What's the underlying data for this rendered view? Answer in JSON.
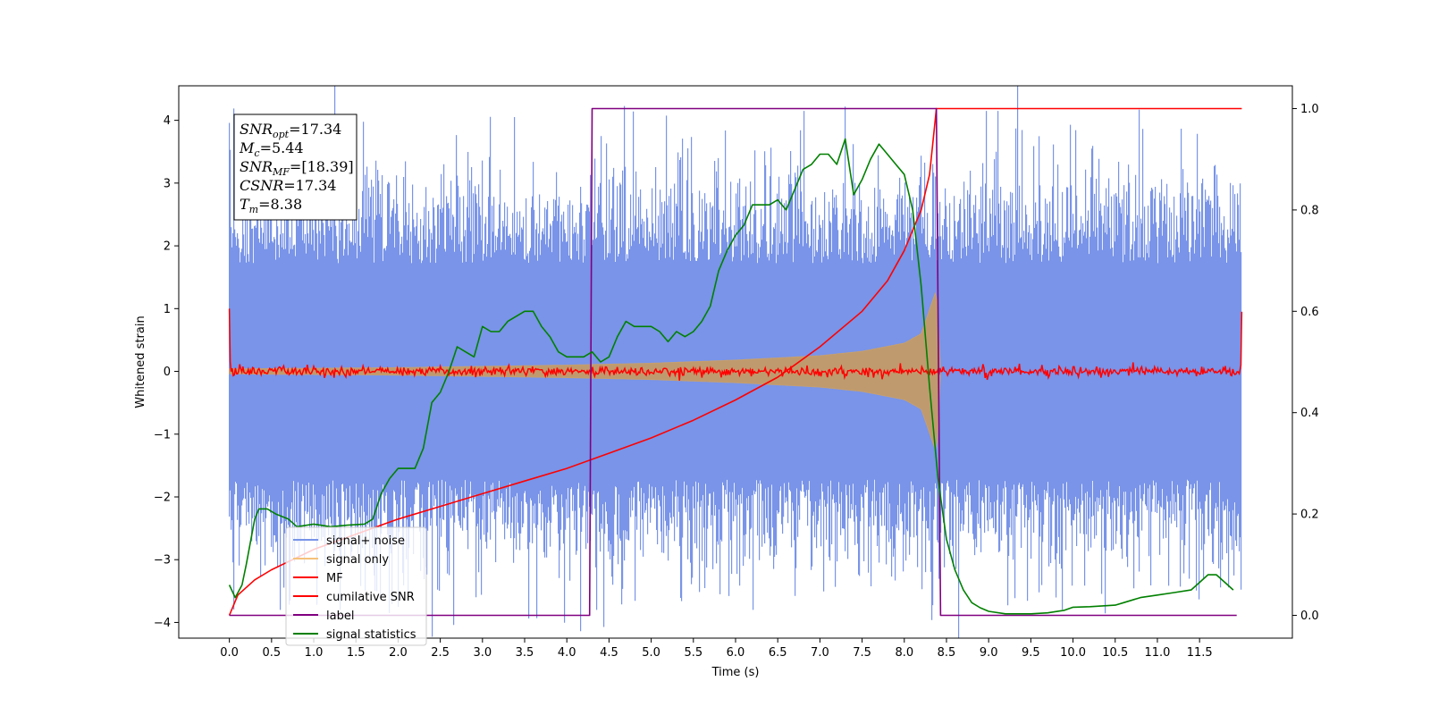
{
  "chart_data": {
    "type": "line",
    "xlabel": "Time (s)",
    "ylabel": "Whitened strain",
    "xlim": [
      -0.6,
      12.6
    ],
    "ylim": [
      -4.25,
      4.55
    ],
    "y2lim": [
      -0.045,
      1.045
    ],
    "grid": false,
    "legend_position": "bottom-left",
    "x_ticks": [
      "0.0",
      "0.5",
      "1.0",
      "1.5",
      "2.0",
      "2.5",
      "3.0",
      "3.5",
      "4.0",
      "4.5",
      "5.0",
      "5.5",
      "6.0",
      "6.5",
      "7.0",
      "7.5",
      "8.0",
      "8.5",
      "9.0",
      "9.5",
      "10.0",
      "10.5",
      "11.0",
      "11.5"
    ],
    "y_ticks": [
      "4",
      "3",
      "2",
      "1",
      "0",
      "−1",
      "−2",
      "−3",
      "−4"
    ],
    "y2_ticks": [
      "1.0",
      "0.8",
      "0.6",
      "0.4",
      "0.2",
      "0.0"
    ],
    "annotation": {
      "lines": [
        {
          "base": "SNR",
          "sub": "opt",
          "rest": "=17.34"
        },
        {
          "base": "M",
          "sub": "c",
          "rest": "=5.44"
        },
        {
          "base": "SNR",
          "sub": "MF",
          "rest": "=[18.39]"
        },
        {
          "base": "CSNR",
          "sub": "",
          "rest": "=17.34"
        },
        {
          "base": "T",
          "sub": "m",
          "rest": "=8.38"
        }
      ]
    },
    "series": [
      {
        "name": "signal+ noise",
        "color": "#7994e8",
        "axis": "left",
        "kind": "noise-band",
        "x_range": [
          0.0,
          12.0
        ],
        "envelope": {
          "typical": 2.3,
          "peak_max": 4.15,
          "peak_min": -3.8
        }
      },
      {
        "name": "signal only",
        "color": "#f5c27a",
        "axis": "left",
        "kind": "chirp-band",
        "x_range": [
          0.0,
          8.43
        ],
        "amplitude": {
          "x": [
            0.0,
            2.0,
            4.0,
            5.0,
            6.0,
            7.0,
            7.5,
            8.0,
            8.2,
            8.38,
            8.42,
            8.43
          ],
          "y": [
            0.04,
            0.06,
            0.1,
            0.13,
            0.18,
            0.25,
            0.32,
            0.45,
            0.6,
            1.3,
            0.4,
            0.0
          ]
        }
      },
      {
        "name": "MF",
        "color": "#ff0000",
        "axis": "left",
        "kind": "noise-line",
        "x_range": [
          0.0,
          12.0
        ],
        "end_values": {
          "start": 1.0,
          "end": 0.95
        },
        "noise_sd": 0.035
      },
      {
        "name": "cumilative SNR",
        "color": "#ff0000",
        "axis": "right",
        "x": [
          0.0,
          0.1,
          0.3,
          0.5,
          1.0,
          1.5,
          2.0,
          2.5,
          3.0,
          3.5,
          4.0,
          4.5,
          5.0,
          5.5,
          6.0,
          6.5,
          7.0,
          7.5,
          7.8,
          8.0,
          8.2,
          8.3,
          8.38,
          8.4,
          8.5,
          9.0,
          10.0,
          11.0,
          12.0
        ],
        "y": [
          0.0,
          0.04,
          0.07,
          0.09,
          0.13,
          0.16,
          0.19,
          0.215,
          0.24,
          0.265,
          0.29,
          0.32,
          0.35,
          0.385,
          0.425,
          0.47,
          0.53,
          0.6,
          0.66,
          0.72,
          0.8,
          0.87,
          1.0,
          1.0,
          1.0,
          1.0,
          1.0,
          1.0,
          1.0
        ]
      },
      {
        "name": "label",
        "color": "#800080",
        "axis": "right",
        "x": [
          0.0,
          4.27,
          4.3,
          8.38,
          8.43,
          11.94
        ],
        "y": [
          0.0,
          0.0,
          1.0,
          1.0,
          0.0,
          0.0
        ]
      },
      {
        "name": "signal statistics",
        "color": "#008000",
        "axis": "right",
        "x": [
          0.0,
          0.07,
          0.15,
          0.2,
          0.3,
          0.35,
          0.45,
          0.55,
          0.7,
          0.8,
          1.0,
          1.2,
          1.4,
          1.6,
          1.7,
          1.8,
          1.9,
          2.0,
          2.1,
          2.2,
          2.3,
          2.4,
          2.5,
          2.6,
          2.7,
          2.8,
          2.9,
          3.0,
          3.1,
          3.2,
          3.3,
          3.5,
          3.6,
          3.7,
          3.8,
          3.9,
          4.0,
          4.2,
          4.3,
          4.4,
          4.5,
          4.6,
          4.7,
          4.8,
          4.9,
          5.0,
          5.1,
          5.2,
          5.3,
          5.4,
          5.5,
          5.6,
          5.7,
          5.8,
          5.9,
          6.0,
          6.1,
          6.2,
          6.3,
          6.4,
          6.5,
          6.6,
          6.7,
          6.8,
          6.9,
          7.0,
          7.1,
          7.2,
          7.3,
          7.4,
          7.5,
          7.6,
          7.7,
          7.8,
          7.9,
          8.0,
          8.1,
          8.2,
          8.3,
          8.4,
          8.5,
          8.6,
          8.7,
          8.8,
          8.9,
          9.0,
          9.2,
          9.5,
          9.7,
          9.9,
          10.0,
          10.2,
          10.5,
          10.6,
          10.8,
          11.0,
          11.2,
          11.4,
          11.5,
          11.6,
          11.7,
          11.8,
          11.9
        ],
        "y": [
          0.06,
          0.035,
          0.06,
          0.1,
          0.19,
          0.21,
          0.21,
          0.2,
          0.19,
          0.175,
          0.18,
          0.175,
          0.178,
          0.18,
          0.19,
          0.24,
          0.27,
          0.29,
          0.29,
          0.29,
          0.33,
          0.42,
          0.44,
          0.48,
          0.53,
          0.52,
          0.51,
          0.57,
          0.56,
          0.56,
          0.58,
          0.6,
          0.6,
          0.57,
          0.55,
          0.52,
          0.51,
          0.51,
          0.52,
          0.5,
          0.51,
          0.55,
          0.58,
          0.57,
          0.57,
          0.57,
          0.56,
          0.54,
          0.56,
          0.55,
          0.56,
          0.58,
          0.61,
          0.68,
          0.72,
          0.75,
          0.77,
          0.81,
          0.81,
          0.81,
          0.82,
          0.8,
          0.84,
          0.88,
          0.89,
          0.91,
          0.91,
          0.89,
          0.94,
          0.83,
          0.86,
          0.9,
          0.93,
          0.91,
          0.89,
          0.87,
          0.8,
          0.65,
          0.45,
          0.27,
          0.15,
          0.09,
          0.05,
          0.025,
          0.015,
          0.008,
          0.003,
          0.003,
          0.005,
          0.01,
          0.016,
          0.017,
          0.02,
          0.025,
          0.035,
          0.04,
          0.045,
          0.05,
          0.065,
          0.08,
          0.08,
          0.065,
          0.05
        ]
      }
    ]
  }
}
